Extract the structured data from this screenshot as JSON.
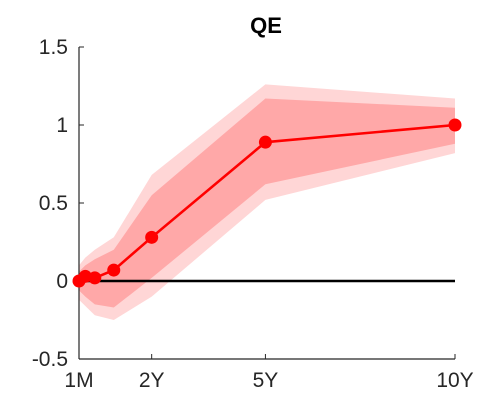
{
  "chart_data": {
    "type": "line",
    "title": "QE",
    "xlabel": "",
    "ylabel": "",
    "x_tick_positions": [
      0.0833,
      2,
      5,
      10
    ],
    "x_tick_labels": [
      "1M",
      "2Y",
      "5Y",
      "10Y"
    ],
    "xlim": [
      0.0833,
      10
    ],
    "ylim": [
      -0.5,
      1.5
    ],
    "y_ticks": [
      -0.5,
      0,
      0.5,
      1,
      1.5
    ],
    "y_tick_labels": [
      "-0.5",
      "0",
      "0.5",
      "1",
      "1.5"
    ],
    "reference_line": 0,
    "series": [
      {
        "x": [
          0.0833,
          0.25,
          0.5,
          1,
          2,
          5,
          10
        ],
        "y": [
          0.0,
          0.03,
          0.02,
          0.07,
          0.28,
          0.89,
          1.0
        ],
        "band_outer_lower": [
          -0.12,
          -0.16,
          -0.22,
          -0.25,
          -0.1,
          0.52,
          0.82
        ],
        "band_outer_upper": [
          0.1,
          0.15,
          0.2,
          0.28,
          0.68,
          1.26,
          1.17
        ],
        "band_inner_lower": [
          -0.06,
          -0.1,
          -0.15,
          -0.17,
          0.02,
          0.62,
          0.88
        ],
        "band_inner_upper": [
          0.06,
          0.1,
          0.14,
          0.2,
          0.55,
          1.17,
          1.11
        ]
      }
    ],
    "colors": {
      "line": "#ff0000",
      "band_outer": "#ffd6d6",
      "band_inner": "#ffa8a8",
      "reference": "#000000",
      "axis": "#262626"
    },
    "grid": false,
    "legend": "none"
  }
}
